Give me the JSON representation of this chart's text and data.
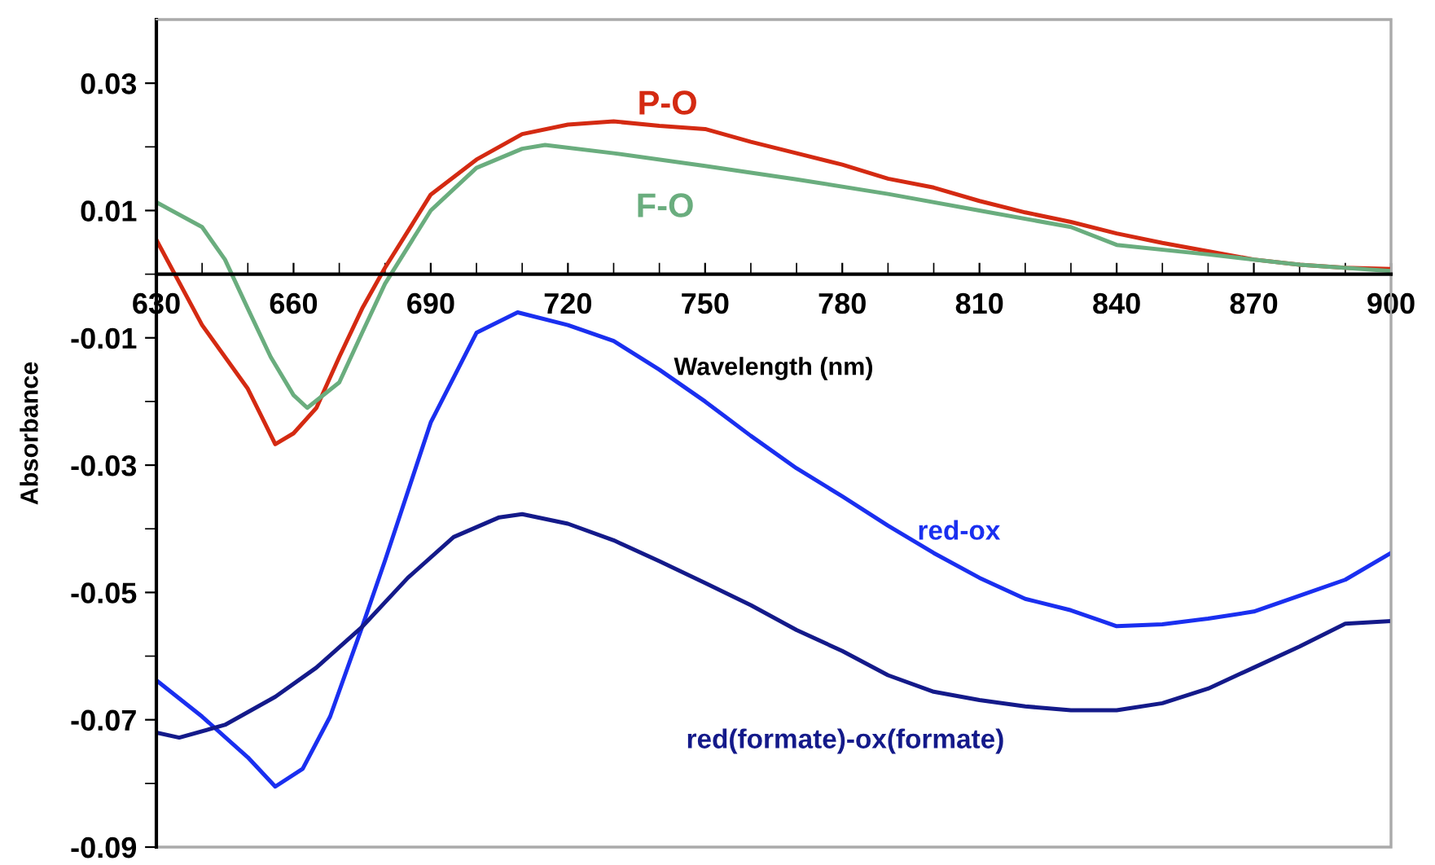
{
  "chart_data": {
    "type": "line",
    "xlabel": "Wavelength (nm)",
    "ylabel": "Absorbance",
    "xlim": [
      630,
      900
    ],
    "ylim": [
      -0.09,
      0.04
    ],
    "xticks": [
      630,
      {
        "value": 640,
        "label": null
      },
      {
        "value": 650,
        "label": null
      },
      660,
      {
        "value": 670,
        "label": null
      },
      {
        "value": 680,
        "label": null
      },
      690,
      {
        "value": 700,
        "label": null
      },
      {
        "value": 710,
        "label": null
      },
      720,
      {
        "value": 730,
        "label": null
      },
      {
        "value": 740,
        "label": null
      },
      750,
      {
        "value": 760,
        "label": null
      },
      {
        "value": 770,
        "label": null
      },
      780,
      {
        "value": 790,
        "label": null
      },
      {
        "value": 800,
        "label": null
      },
      810,
      {
        "value": 820,
        "label": null
      },
      {
        "value": 830,
        "label": null
      },
      840,
      {
        "value": 850,
        "label": null
      },
      {
        "value": 860,
        "label": null
      },
      870,
      {
        "value": 880,
        "label": null
      },
      {
        "value": 890,
        "label": null
      },
      900
    ],
    "yticks": [
      -0.09,
      {
        "value": -0.08,
        "label": null
      },
      -0.07,
      {
        "value": -0.06,
        "label": null
      },
      -0.05,
      {
        "value": -0.04,
        "label": null
      },
      -0.03,
      {
        "value": -0.02,
        "label": null
      },
      -0.01,
      {
        "value": 0,
        "label": null
      },
      0.01,
      {
        "value": 0.02,
        "label": null
      },
      0.03
    ],
    "grid": false,
    "legend": false,
    "marker": "none",
    "line_style": "solid",
    "series": [
      {
        "name": "P-O",
        "color": "#d42a12",
        "x": [
          630,
          640,
          650,
          656,
          660,
          665,
          670,
          675,
          680,
          690,
          700,
          710,
          720,
          730,
          740,
          750,
          760,
          770,
          780,
          790,
          800,
          810,
          820,
          830,
          840,
          850,
          860,
          870,
          880,
          890,
          900
        ],
        "values": [
          0.0054,
          -0.008,
          -0.018,
          -0.0267,
          -0.025,
          -0.021,
          -0.013,
          -0.0054,
          0.001,
          0.0125,
          0.018,
          0.022,
          0.0235,
          0.024,
          0.0233,
          0.0228,
          0.0208,
          0.019,
          0.0172,
          0.015,
          0.0136,
          0.0115,
          0.0097,
          0.0082,
          0.0064,
          0.0049,
          0.0036,
          0.0023,
          0.0015,
          0.001,
          0.0008
        ]
      },
      {
        "name": "F-O",
        "color": "#6aad7e",
        "x": [
          630,
          640,
          645,
          650,
          655,
          660,
          663,
          670,
          675,
          680,
          690,
          700,
          710,
          715,
          730,
          750,
          770,
          790,
          810,
          830,
          840,
          860,
          880,
          900
        ],
        "values": [
          0.0113,
          0.0074,
          0.0023,
          -0.0054,
          -0.013,
          -0.019,
          -0.021,
          -0.017,
          -0.0092,
          -0.0015,
          0.01,
          0.0167,
          0.0197,
          0.0203,
          0.019,
          0.017,
          0.0149,
          0.0126,
          0.01,
          0.0074,
          0.0046,
          0.0031,
          0.0015,
          0.0005
        ]
      },
      {
        "name": "red-ox",
        "color": "#1a2ff0",
        "x": [
          630,
          640,
          650,
          656,
          662,
          668,
          675,
          680,
          690,
          700,
          709,
          720,
          730,
          740,
          750,
          760,
          770,
          780,
          790,
          800,
          810,
          820,
          830,
          840,
          850,
          860,
          870,
          880,
          890,
          900
        ],
        "values": [
          -0.0638,
          -0.0695,
          -0.0759,
          -0.0805,
          -0.0777,
          -0.0695,
          -0.0554,
          -0.045,
          -0.0233,
          -0.0092,
          -0.006,
          -0.008,
          -0.0105,
          -0.015,
          -0.02,
          -0.0254,
          -0.0305,
          -0.0349,
          -0.0395,
          -0.0438,
          -0.0477,
          -0.051,
          -0.0528,
          -0.0553,
          -0.055,
          -0.0541,
          -0.053,
          -0.0505,
          -0.048,
          -0.0438
        ]
      },
      {
        "name": "red(formate)-ox(formate)",
        "color": "#141a8a",
        "x": [
          630,
          635,
          645,
          656,
          665,
          675,
          685,
          695,
          705,
          710,
          720,
          730,
          740,
          750,
          760,
          770,
          780,
          790,
          800,
          810,
          820,
          830,
          840,
          850,
          860,
          870,
          880,
          890,
          900
        ],
        "values": [
          -0.072,
          -0.0728,
          -0.0708,
          -0.0664,
          -0.0618,
          -0.0554,
          -0.0477,
          -0.0413,
          -0.0382,
          -0.0377,
          -0.0392,
          -0.0418,
          -0.0451,
          -0.0485,
          -0.052,
          -0.0559,
          -0.0592,
          -0.063,
          -0.0656,
          -0.0669,
          -0.0679,
          -0.0685,
          -0.0685,
          -0.0674,
          -0.0651,
          -0.0618,
          -0.0585,
          -0.0549,
          -0.0545
        ]
      }
    ]
  }
}
